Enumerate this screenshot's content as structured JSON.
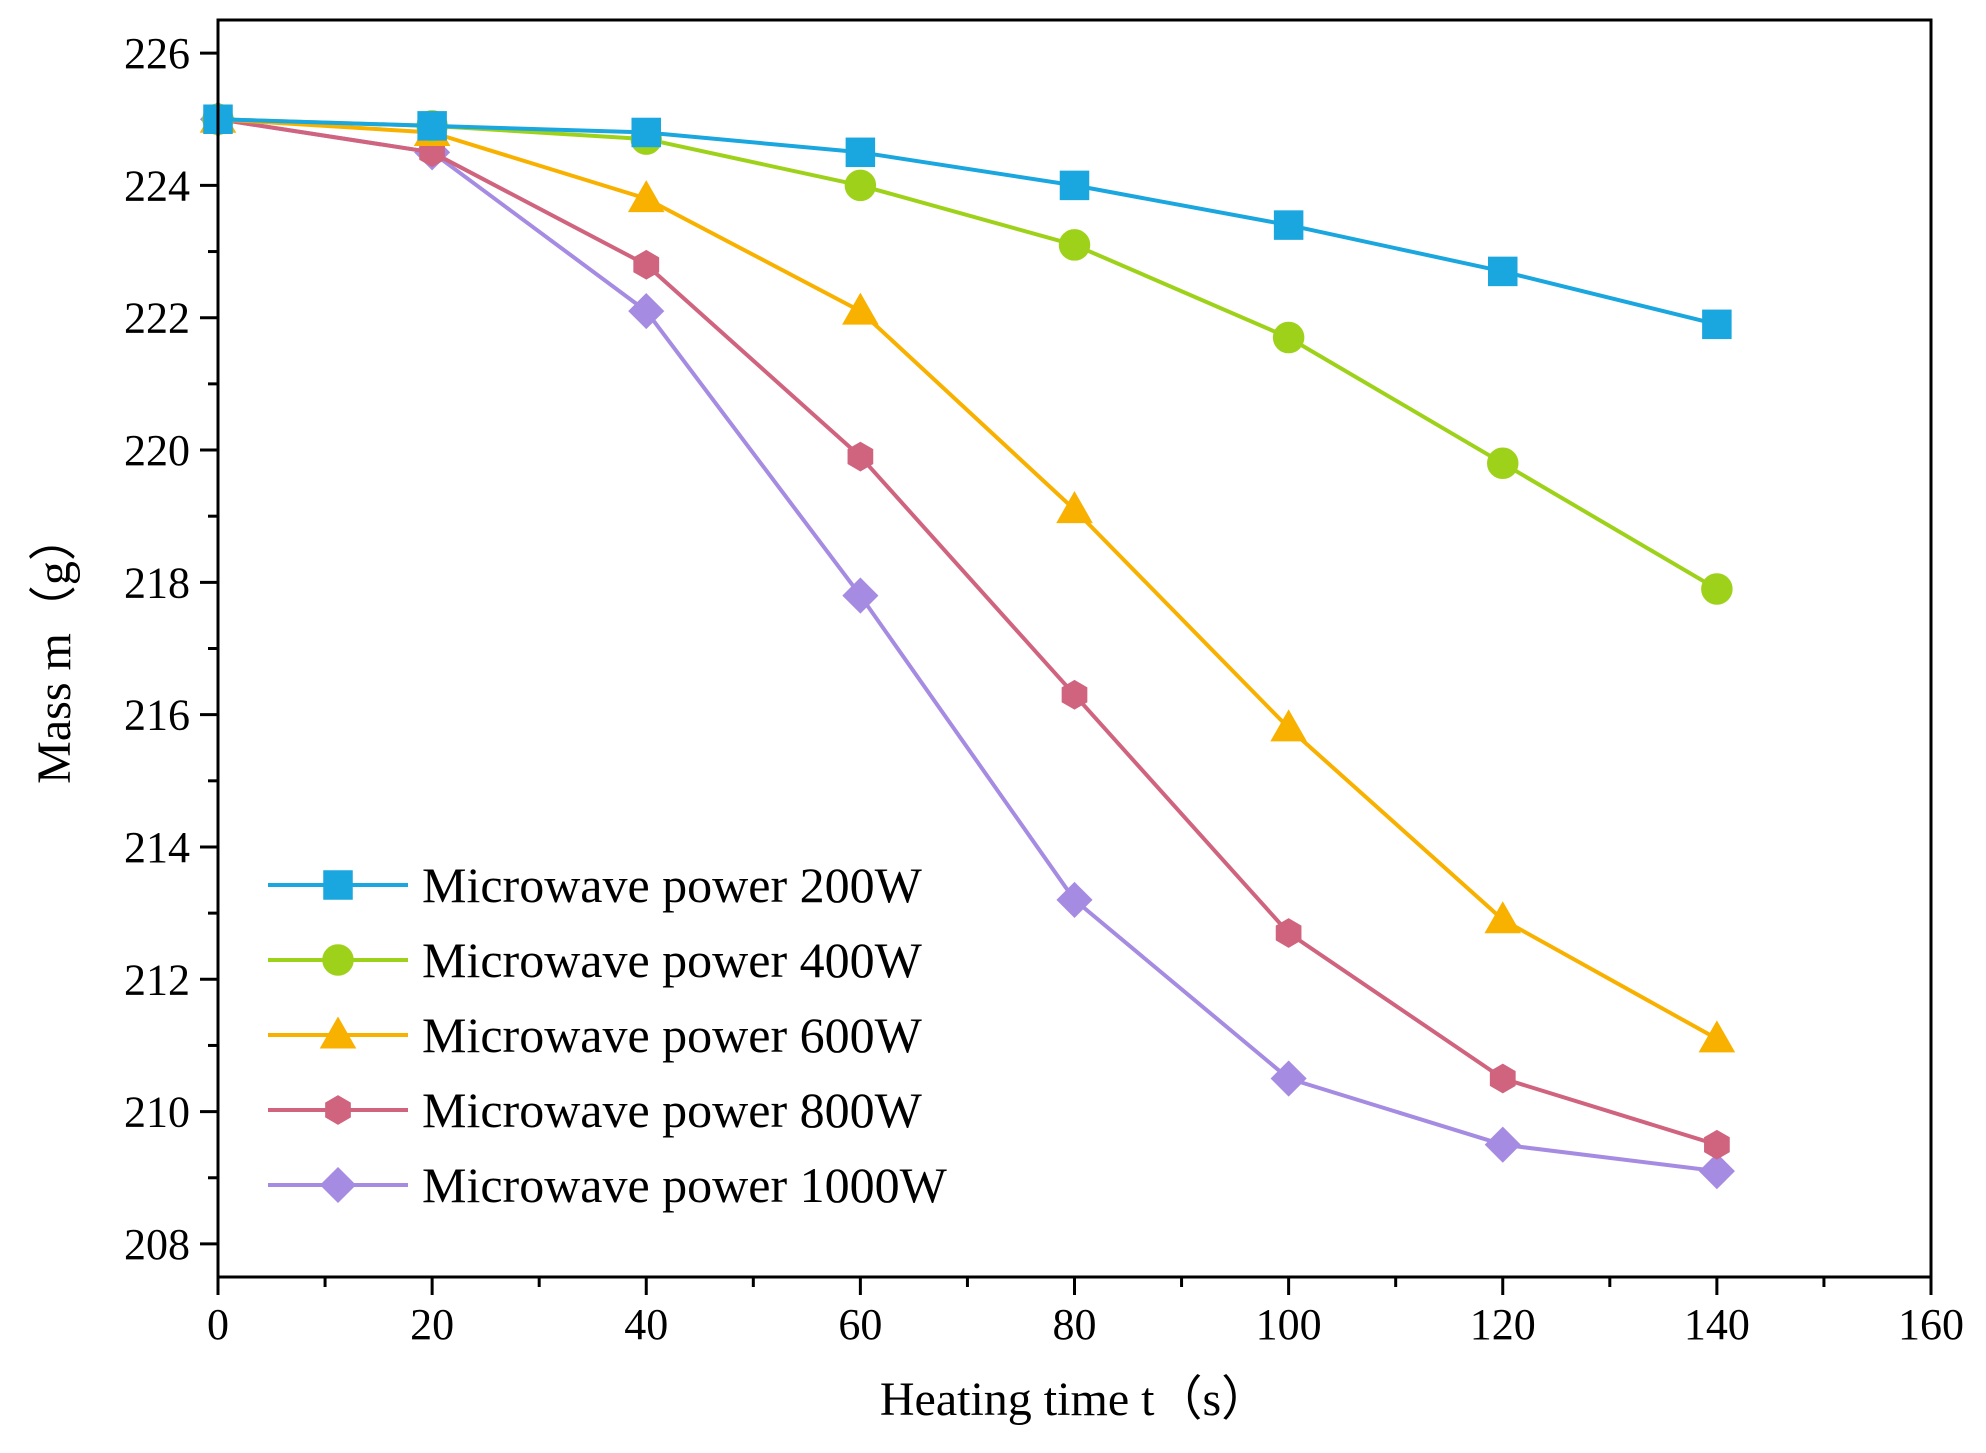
{
  "chart_data": {
    "type": "line",
    "title": "",
    "xlabel": "Heating time t（s）",
    "ylabel": "Mass m（g）",
    "xlim": [
      0,
      160
    ],
    "ylim": [
      207.5,
      226.5
    ],
    "x_ticks": [
      0,
      20,
      40,
      60,
      80,
      100,
      120,
      140,
      160
    ],
    "y_ticks": [
      208,
      210,
      212,
      214,
      216,
      218,
      220,
      222,
      224,
      226
    ],
    "x_tick_labels": [
      "0",
      "20",
      "40",
      "60",
      "80",
      "100",
      "120",
      "140",
      "160"
    ],
    "y_tick_labels": [
      "208",
      "210",
      "212",
      "214",
      "216",
      "218",
      "220",
      "222",
      "224",
      "226"
    ],
    "grid": false,
    "legend_position": "bottom-left",
    "x": [
      0,
      20,
      40,
      60,
      80,
      100,
      120,
      140
    ],
    "series": [
      {
        "name": "Microwave power 200W",
        "color": "#1AA6DE",
        "marker": "square",
        "values": [
          225.0,
          224.9,
          224.8,
          224.5,
          224.0,
          223.4,
          222.7,
          221.9
        ]
      },
      {
        "name": "Microwave power 400W",
        "color": "#9ED21A",
        "marker": "circle",
        "values": [
          225.0,
          224.9,
          224.7,
          224.0,
          223.1,
          221.7,
          219.8,
          217.9
        ]
      },
      {
        "name": "Microwave power 600W",
        "color": "#F9B100",
        "marker": "triangle",
        "values": [
          225.0,
          224.8,
          223.8,
          222.1,
          219.1,
          215.8,
          212.9,
          211.1
        ]
      },
      {
        "name": "Microwave power 800W",
        "color": "#D0647F",
        "marker": "hexagon",
        "values": [
          225.0,
          224.5,
          222.8,
          219.9,
          216.3,
          212.7,
          210.5,
          209.5
        ]
      },
      {
        "name": "Microwave power 1000W",
        "color": "#A58BE2",
        "marker": "diamond",
        "values": [
          225.0,
          224.5,
          222.1,
          217.8,
          213.2,
          210.5,
          209.5,
          209.1
        ]
      }
    ]
  }
}
